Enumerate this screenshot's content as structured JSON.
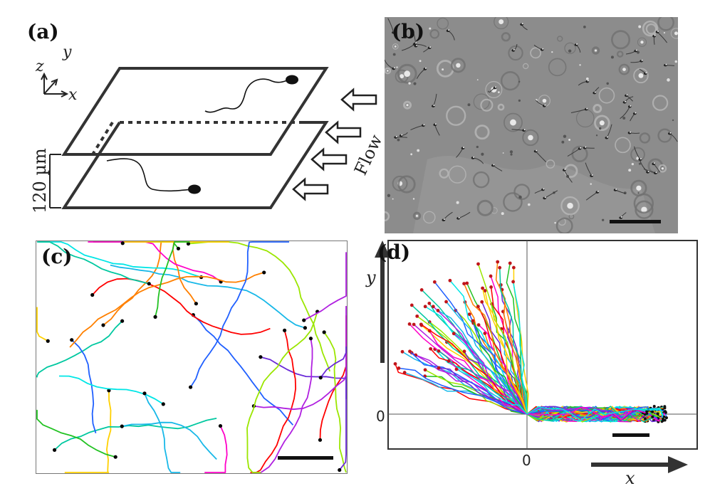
{
  "panels": {
    "a": {
      "label": "(a)",
      "axis_z": "z",
      "axis_y": "y",
      "axis_x": "x",
      "dimension": "120 µm",
      "flow_label": "Flow"
    },
    "b": {
      "label": "(b)"
    },
    "c": {
      "label": "(c)"
    },
    "d": {
      "label": "(d)",
      "axis_y": "y",
      "axis_x": "x",
      "y_zero": "0",
      "x_zero": "0"
    }
  },
  "colors": {
    "frame": "#222222",
    "micrograph_bg": "#8a8a8a",
    "endpoint_c": "#000000",
    "endpoint_d": "#c0151b",
    "tracks": [
      "#ff0000",
      "#ff8000",
      "#ffd000",
      "#9be600",
      "#22c222",
      "#00c8a0",
      "#18b8e8",
      "#2060ff",
      "#6a2ad8",
      "#b020e0",
      "#ff00c8",
      "#00e6e6"
    ]
  },
  "icons": [
    "sperm-cell-icon",
    "flow-arrow-icon",
    "scale-bar"
  ]
}
